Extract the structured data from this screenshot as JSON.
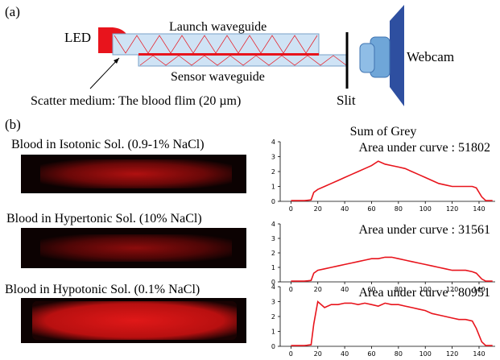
{
  "panel_a_label": "(a)",
  "diagram": {
    "led": "LED",
    "launch_waveguide": "Launch waveguide",
    "sensor_waveguide": "Sensor waveguide",
    "scatter_medium": "Scatter medium: The blood flim (20 µm)",
    "slit": "Slit",
    "webcam": "Webcam"
  },
  "panel_b_label": "(b)",
  "samples": [
    {
      "caption": "Blood in Isotonic Sol. (0.9-1% NaCl)"
    },
    {
      "caption": "Blood in Hypertonic Sol. (10% NaCl)"
    },
    {
      "caption": "Blood in Hypotonic Sol. (0.1% NaCl)"
    }
  ],
  "chart_data": [
    {
      "type": "line",
      "title": "Sum of Grey",
      "annotation": "Area under curve : 51802",
      "color": "#e8141c",
      "x": [
        0,
        5,
        10,
        15,
        17,
        20,
        25,
        30,
        35,
        40,
        45,
        50,
        55,
        60,
        65,
        70,
        75,
        80,
        85,
        90,
        95,
        100,
        105,
        110,
        115,
        120,
        125,
        130,
        135,
        138,
        142,
        145,
        150
      ],
      "values": [
        0.05,
        0.05,
        0.05,
        0.1,
        0.6,
        0.8,
        1.0,
        1.2,
        1.4,
        1.6,
        1.8,
        2.0,
        2.2,
        2.4,
        2.7,
        2.5,
        2.4,
        2.3,
        2.2,
        2.0,
        1.8,
        1.6,
        1.4,
        1.2,
        1.1,
        1.0,
        1.0,
        1.0,
        1.0,
        0.9,
        0.3,
        0.05,
        0.05
      ],
      "xlim": [
        -8,
        152
      ],
      "ylim": [
        0,
        4
      ],
      "xticks": [
        0,
        20,
        40,
        60,
        80,
        100,
        120,
        140
      ],
      "yticks": [
        0,
        1,
        2,
        3,
        4
      ]
    },
    {
      "type": "line",
      "annotation": "Area under curve : 31561",
      "color": "#e8141c",
      "x": [
        0,
        5,
        10,
        15,
        17,
        20,
        25,
        30,
        35,
        40,
        45,
        50,
        55,
        60,
        65,
        70,
        75,
        80,
        85,
        90,
        95,
        100,
        105,
        110,
        115,
        120,
        125,
        130,
        135,
        138,
        142,
        145,
        150
      ],
      "values": [
        0.05,
        0.05,
        0.05,
        0.1,
        0.6,
        0.8,
        0.9,
        1.0,
        1.1,
        1.2,
        1.3,
        1.4,
        1.5,
        1.6,
        1.6,
        1.7,
        1.7,
        1.6,
        1.5,
        1.4,
        1.3,
        1.2,
        1.1,
        1.0,
        0.9,
        0.8,
        0.8,
        0.8,
        0.7,
        0.6,
        0.2,
        0.05,
        0.05
      ],
      "xlim": [
        -8,
        152
      ],
      "ylim": [
        0,
        4
      ],
      "xticks": [
        0,
        20,
        40,
        60,
        80,
        100,
        120,
        140
      ],
      "yticks": [
        0,
        1,
        2,
        3,
        4
      ]
    },
    {
      "type": "line",
      "annotation": "Area under curve : 80951",
      "color": "#e8141c",
      "x": [
        0,
        5,
        10,
        15,
        17,
        20,
        25,
        30,
        35,
        40,
        45,
        50,
        55,
        60,
        65,
        70,
        75,
        80,
        85,
        90,
        95,
        100,
        105,
        110,
        115,
        120,
        125,
        130,
        135,
        138,
        142,
        145,
        150
      ],
      "values": [
        0.05,
        0.05,
        0.05,
        0.1,
        1.5,
        3.0,
        2.6,
        2.8,
        2.8,
        2.9,
        2.9,
        2.8,
        2.9,
        2.8,
        2.7,
        2.9,
        2.8,
        2.8,
        2.7,
        2.6,
        2.5,
        2.4,
        2.2,
        2.1,
        2.0,
        1.9,
        1.8,
        1.8,
        1.7,
        1.2,
        0.3,
        0.05,
        0.05
      ],
      "xlim": [
        -8,
        152
      ],
      "ylim": [
        0,
        4
      ],
      "xticks": [
        0,
        20,
        40,
        60,
        80,
        100,
        120,
        140
      ],
      "yticks": [
        0,
        1,
        2,
        3,
        4
      ]
    }
  ]
}
